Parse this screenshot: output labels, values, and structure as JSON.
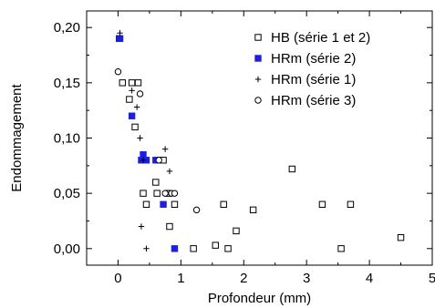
{
  "chart_data": {
    "type": "scatter",
    "title": "",
    "xlabel": "Profondeur (mm)",
    "ylabel": "Endommagement",
    "xlim": [
      -0.5,
      5
    ],
    "ylim": [
      -0.015,
      0.215
    ],
    "xticks": [
      0,
      1,
      2,
      3,
      4,
      5
    ],
    "xtick_labels": [
      "0",
      "1",
      "2",
      "3",
      "4",
      "5"
    ],
    "yticks": [
      0,
      0.05,
      0.1,
      0.15,
      0.2
    ],
    "ytick_labels": [
      "0,00",
      "0,05",
      "0,10",
      "0,15",
      "0,20"
    ],
    "grid": false,
    "legend_position": "top-right",
    "series": [
      {
        "name": "HB (série 1 et 2)",
        "marker": "open-square",
        "color": "#000000",
        "x": [
          0.02,
          0.07,
          0.18,
          0.22,
          0.27,
          0.32,
          0.4,
          0.45,
          0.6,
          0.62,
          0.72,
          0.8,
          0.82,
          0.9,
          1.2,
          1.55,
          1.68,
          1.75,
          1.88,
          2.15,
          2.77,
          3.25,
          3.55,
          3.7,
          4.5
        ],
        "y": [
          0.19,
          0.15,
          0.135,
          0.15,
          0.11,
          0.15,
          0.05,
          0.04,
          0.06,
          0.05,
          0.08,
          0.05,
          0.02,
          0.04,
          0.0,
          0.003,
          0.04,
          0.0,
          0.016,
          0.035,
          0.072,
          0.04,
          0.0,
          0.04,
          0.01
        ]
      },
      {
        "name": "HRm (série 2)",
        "marker": "filled-square",
        "color": "#1f1fe0",
        "x": [
          0.03,
          0.22,
          0.37,
          0.4,
          0.45,
          0.6,
          0.72,
          0.9
        ],
        "y": [
          0.19,
          0.12,
          0.08,
          0.085,
          0.08,
          0.08,
          0.04,
          0.0
        ]
      },
      {
        "name": "HRm (série 1)",
        "marker": "plus",
        "color": "#000000",
        "x": [
          0.03,
          0.22,
          0.3,
          0.35,
          0.37,
          0.4,
          0.45,
          0.75,
          0.82
        ],
        "y": [
          0.195,
          0.143,
          0.128,
          0.1,
          0.02,
          0.08,
          0.0,
          0.09,
          0.07
        ]
      },
      {
        "name": "HRm (série 3)",
        "marker": "open-circle",
        "color": "#000000",
        "x": [
          0.0,
          0.35,
          0.65,
          0.75,
          0.85,
          0.9,
          1.25
        ],
        "y": [
          0.16,
          0.14,
          0.08,
          0.05,
          0.05,
          0.05,
          0.035
        ]
      }
    ]
  }
}
